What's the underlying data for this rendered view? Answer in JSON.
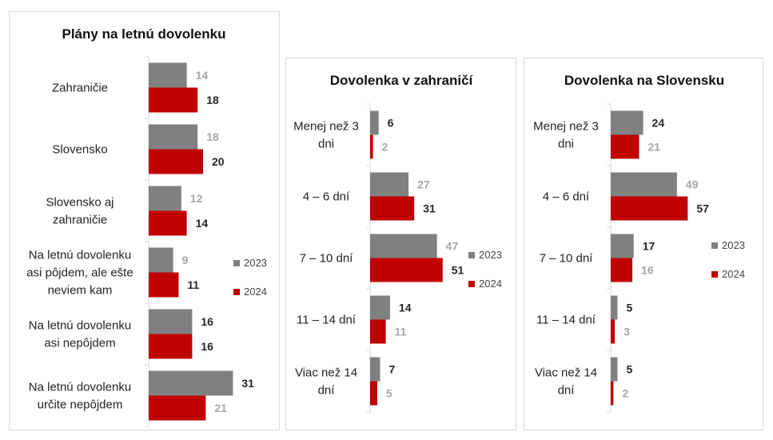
{
  "colors": {
    "y2023": "#808080",
    "y2024": "#c00000",
    "label_dark": "#262626",
    "label_light": "#a6a6a6",
    "axis": "#d9d9d9"
  },
  "chart_data": [
    {
      "type": "bar",
      "orientation": "horizontal",
      "title": "Plány na letnú dovolenku",
      "categories": [
        [
          "Zahraničie"
        ],
        [
          "Slovensko"
        ],
        [
          "Slovensko aj",
          "zahraničie"
        ],
        [
          "Na letnú dovolenku",
          "asi pôjdem, ale ešte",
          "neviem kam"
        ],
        [
          "Na letnú dovolenku",
          "asi nepôjdem"
        ],
        [
          "Na letnú dovolenku",
          "určite nepôjdem"
        ]
      ],
      "series": [
        {
          "name": "2023",
          "values": [
            14,
            18,
            12,
            9,
            16,
            31
          ]
        },
        {
          "name": "2024",
          "values": [
            18,
            20,
            14,
            11,
            16,
            21
          ]
        }
      ],
      "legend": "right"
    },
    {
      "type": "bar",
      "orientation": "horizontal",
      "title": "Dovolenka v zahraničí",
      "categories": [
        [
          "Menej než 3",
          "dni"
        ],
        [
          "4 – 6 dní"
        ],
        [
          "7 – 10 dní"
        ],
        [
          "11 – 14 dní"
        ],
        [
          "Viac než 14",
          "dní"
        ]
      ],
      "series": [
        {
          "name": "2023",
          "values": [
            6,
            27,
            47,
            14,
            7
          ]
        },
        {
          "name": "2024",
          "values": [
            2,
            31,
            51,
            11,
            5
          ]
        }
      ],
      "legend": "right"
    },
    {
      "type": "bar",
      "orientation": "horizontal",
      "title": "Dovolenka na Slovensku",
      "categories": [
        [
          "Menej než 3",
          "dni"
        ],
        [
          "4 – 6 dní"
        ],
        [
          "7 – 10 dní"
        ],
        [
          "11 – 14 dní"
        ],
        [
          "Viac než 14",
          "dní"
        ]
      ],
      "series": [
        {
          "name": "2023",
          "values": [
            24,
            49,
            17,
            5,
            5
          ]
        },
        {
          "name": "2024",
          "values": [
            21,
            57,
            16,
            3,
            2
          ]
        }
      ],
      "legend": "right"
    }
  ]
}
